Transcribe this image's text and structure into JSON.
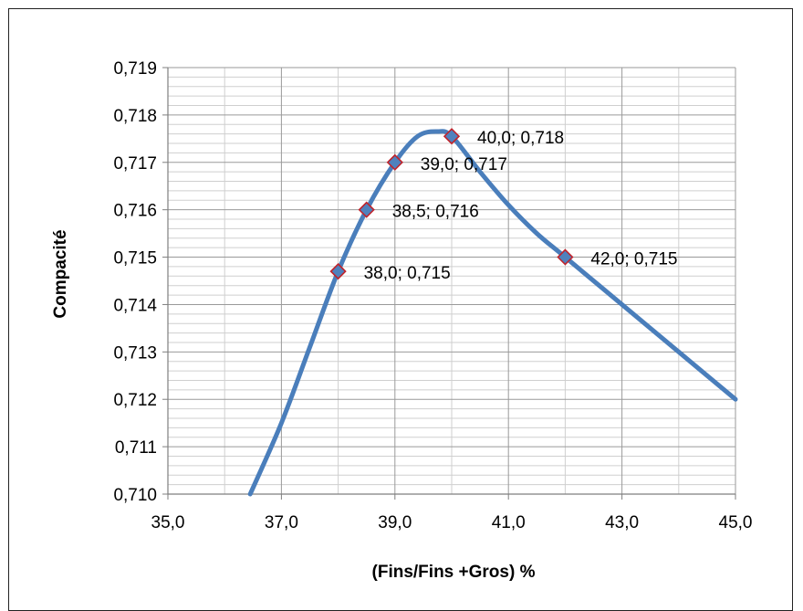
{
  "chart_data": {
    "type": "scatter",
    "title": "",
    "xlabel": "(Fins/Fins +Gros) %",
    "ylabel": "Compacité",
    "xlim": [
      35.0,
      45.0
    ],
    "ylim": [
      0.71,
      0.719
    ],
    "x_ticks": [
      "35,0",
      "37,0",
      "39,0",
      "41,0",
      "43,0",
      "45,0"
    ],
    "y_ticks": [
      "0,710",
      "0,711",
      "0,712",
      "0,713",
      "0,714",
      "0,715",
      "0,716",
      "0,717",
      "0,718",
      "0,719"
    ],
    "grid": true,
    "legend": "none",
    "series": [
      {
        "points": [
          {
            "x": 38.0,
            "y": 0.7147,
            "label": "38,0; 0,715"
          },
          {
            "x": 38.5,
            "y": 0.716,
            "label": "38,5; 0,716"
          },
          {
            "x": 39.0,
            "y": 0.717,
            "label": "39,0; 0,717"
          },
          {
            "x": 40.0,
            "y": 0.71755,
            "label": "40,0; 0,718"
          },
          {
            "x": 42.0,
            "y": 0.715,
            "label": "42,0; 0,715"
          }
        ],
        "curve": [
          {
            "x": 36.45,
            "y": 0.71
          },
          {
            "x": 37.0,
            "y": 0.7115
          },
          {
            "x": 37.5,
            "y": 0.7131
          },
          {
            "x": 38.0,
            "y": 0.7147
          },
          {
            "x": 38.5,
            "y": 0.716
          },
          {
            "x": 39.0,
            "y": 0.717
          },
          {
            "x": 39.4,
            "y": 0.71755
          },
          {
            "x": 39.75,
            "y": 0.71765
          },
          {
            "x": 40.0,
            "y": 0.71755
          },
          {
            "x": 40.5,
            "y": 0.7168
          },
          {
            "x": 41.0,
            "y": 0.7161
          },
          {
            "x": 41.5,
            "y": 0.7155
          },
          {
            "x": 42.0,
            "y": 0.715
          },
          {
            "x": 43.0,
            "y": 0.714
          },
          {
            "x": 44.0,
            "y": 0.713
          },
          {
            "x": 45.0,
            "y": 0.712
          }
        ]
      }
    ]
  },
  "colors": {
    "line": "#4a7ebb",
    "marker_fill": "#4f81bd",
    "marker_stroke": "#c0232b",
    "grid_major": "#9a9a9a",
    "grid_minor": "#cfcfcf",
    "axis": "#7f7f7f"
  }
}
